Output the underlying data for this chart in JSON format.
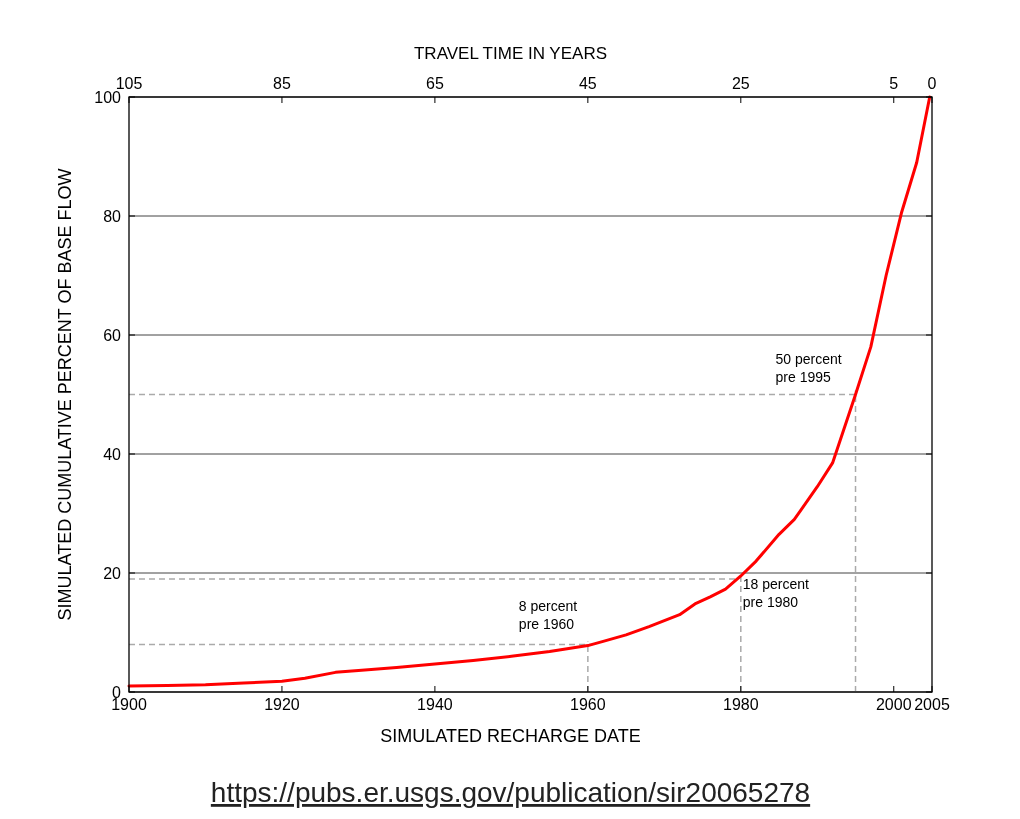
{
  "chart_data": {
    "type": "line",
    "xlabel": "SIMULATED RECHARGE DATE",
    "ylabel": "SIMULATED CUMULATIVE PERCENT OF BASE FLOW",
    "x2label": "TRAVEL TIME IN YEARS",
    "x": [
      1900,
      1905,
      1910,
      1915,
      1920,
      1923,
      1927,
      1930,
      1935,
      1940,
      1945,
      1950,
      1955,
      1960,
      1962,
      1965,
      1968,
      1972,
      1974,
      1976,
      1978,
      1980,
      1982,
      1985,
      1987,
      1990,
      1992,
      1995,
      1997,
      1999,
      2001,
      2003,
      2004.7
    ],
    "series": [
      {
        "color": "#ff0000",
        "values": [
          1,
          1.1,
          1.2,
          1.5,
          1.8,
          2.3,
          3.3,
          3.6,
          4.1,
          4.7,
          5.3,
          6,
          6.8,
          7.8,
          8.5,
          9.6,
          11,
          13,
          14.8,
          16,
          17.3,
          19.5,
          22,
          26.5,
          29,
          34.5,
          38.5,
          50,
          58,
          70,
          80.5,
          89,
          100
        ]
      }
    ],
    "xlim": [
      1900,
      2005
    ],
    "xticks": [
      1900,
      1920,
      1940,
      1960,
      1980,
      2000,
      2005
    ],
    "ylim": [
      0,
      100
    ],
    "yticks": [
      0,
      20,
      40,
      60,
      80,
      100
    ],
    "x2lim": [
      105,
      0
    ],
    "x2ticks": [
      105,
      85,
      65,
      45,
      25,
      5,
      0
    ],
    "grid": "y",
    "marker": "none",
    "line_style": "solid",
    "ref_lines": [
      {
        "axis": "y",
        "value": 8,
        "line_style": "dashed",
        "color": "#aaaaaa"
      },
      {
        "axis": "x",
        "value": 1960,
        "line_style": "dashed",
        "color": "#aaaaaa"
      },
      {
        "axis": "y",
        "value": 19,
        "line_style": "dashed",
        "color": "#aaaaaa"
      },
      {
        "axis": "x",
        "value": 1980,
        "line_style": "dashed",
        "color": "#aaaaaa"
      },
      {
        "axis": "y",
        "value": 50,
        "line_style": "dashed",
        "color": "#aaaaaa"
      },
      {
        "axis": "x",
        "value": 1995,
        "line_style": "dashed",
        "color": "#aaaaaa"
      }
    ],
    "annotations": [
      {
        "text": "8 percent\npre 1960",
        "x": 1960,
        "y": 8
      },
      {
        "text": "18 percent\npre 1980",
        "x": 1980,
        "y": 19
      },
      {
        "text": "50 percent\npre 1995",
        "x": 1995,
        "y": 50
      },
      "https://pubs.er.usgs.gov/publication/sir20065278"
    ]
  }
}
